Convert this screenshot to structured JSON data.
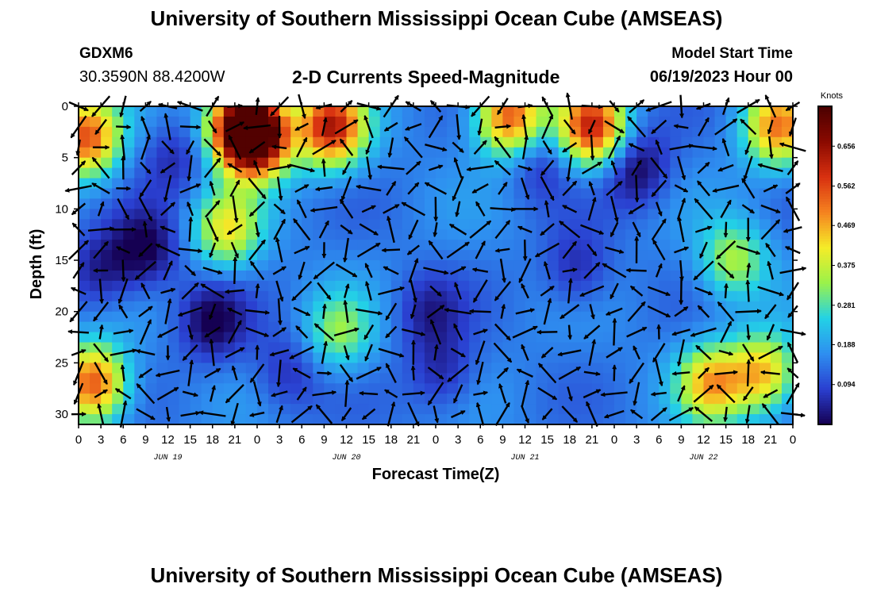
{
  "header": {
    "title": "University of Southern Mississippi Ocean Cube (AMSEAS)",
    "station_id": "GDXM6",
    "station_location": "30.3590N  88.4200W",
    "subtitle": "2-D Currents Speed-Magnitude",
    "model_start_label": "Model Start Time",
    "model_start_value": "06/19/2023 Hour 00"
  },
  "footer": {
    "title": "University of Southern Mississippi Ocean Cube (AMSEAS)"
  },
  "chart_data": {
    "type": "heatmap",
    "title": "2-D Currents Speed-Magnitude",
    "xlabel": "Forecast Time(Z)",
    "ylabel": "Depth (ft)",
    "x_hours_range": [
      0,
      96
    ],
    "x_step_hours": 3,
    "x_tick_labels": [
      "0",
      "3",
      "6",
      "9",
      "12",
      "15",
      "18",
      "21",
      "0",
      "3",
      "6",
      "9",
      "12",
      "15",
      "18",
      "21",
      "0",
      "3",
      "6",
      "9",
      "12",
      "15",
      "18",
      "21",
      "0",
      "3",
      "6",
      "9",
      "12",
      "15",
      "18",
      "21",
      "0"
    ],
    "day_labels": [
      "JUN 19",
      "JUN 20",
      "JUN 21",
      "JUN 22"
    ],
    "ylim": [
      0,
      31
    ],
    "y_ticks": [
      0,
      5,
      10,
      15,
      20,
      25,
      30
    ],
    "depth_levels": [
      0,
      2,
      4,
      6,
      8,
      10,
      12,
      14,
      16,
      18,
      20,
      22,
      24,
      26,
      28,
      30
    ],
    "colorbar": {
      "label": "Knots",
      "ticks": [
        0.094,
        0.188,
        0.281,
        0.375,
        0.469,
        0.562,
        0.656
      ],
      "range": [
        0,
        0.75
      ],
      "colors": [
        "#150052",
        "#2a3fd0",
        "#2e8ff0",
        "#23d2e6",
        "#9af24a",
        "#f5ec28",
        "#f58220",
        "#d83010",
        "#8a0a00",
        "#4a0000"
      ]
    },
    "speed_hotspots": [
      {
        "x": 1,
        "depth": 3,
        "speed": 0.55
      },
      {
        "x": 22,
        "depth": 2,
        "speed": 0.66
      },
      {
        "x": 24,
        "depth": 3,
        "speed": 0.66
      },
      {
        "x": 34,
        "depth": 2,
        "speed": 0.62
      },
      {
        "x": 58,
        "depth": 1,
        "speed": 0.56
      },
      {
        "x": 69,
        "depth": 2,
        "speed": 0.6
      },
      {
        "x": 94,
        "depth": 2,
        "speed": 0.5
      },
      {
        "x": 2,
        "depth": 27,
        "speed": 0.55
      },
      {
        "x": 20,
        "depth": 12,
        "speed": 0.4
      },
      {
        "x": 35,
        "depth": 22,
        "speed": 0.32
      },
      {
        "x": 85,
        "depth": 27,
        "speed": 0.45
      },
      {
        "x": 92,
        "depth": 26,
        "speed": 0.45
      },
      {
        "x": 88,
        "depth": 15,
        "speed": 0.35
      },
      {
        "x": 9,
        "depth": 14,
        "speed": 0.0
      },
      {
        "x": 18,
        "depth": 21,
        "speed": 0.0
      },
      {
        "x": 75,
        "depth": 6,
        "speed": 0.0
      },
      {
        "x": 47,
        "depth": 20,
        "speed": 0.05
      },
      {
        "x": 49,
        "depth": 26,
        "speed": 0.05
      },
      {
        "x": 67,
        "depth": 16,
        "speed": 0.05
      },
      {
        "x": 62,
        "depth": 5,
        "speed": 0.05
      },
      {
        "x": 3,
        "depth": 16,
        "speed": 0.04
      },
      {
        "x": 28,
        "depth": 26,
        "speed": 0.06
      },
      {
        "x": 13,
        "depth": 5,
        "speed": 0.06
      }
    ]
  }
}
